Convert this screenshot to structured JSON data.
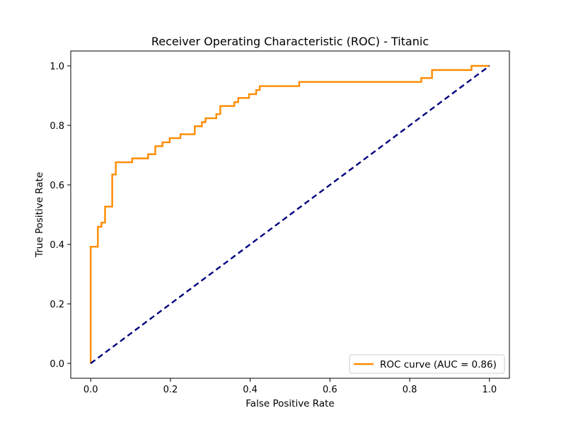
{
  "chart_data": {
    "type": "line",
    "title": "Receiver Operating Characteristic (ROC) - Titanic",
    "xlabel": "False Positive Rate",
    "ylabel": "True Positive Rate",
    "xlim": [
      -0.05,
      1.05
    ],
    "ylim": [
      -0.05,
      1.05
    ],
    "xticks": [
      0.0,
      0.2,
      0.4,
      0.6,
      0.8,
      1.0
    ],
    "xtick_labels": [
      "0.0",
      "0.2",
      "0.4",
      "0.6",
      "0.8",
      "1.0"
    ],
    "yticks": [
      0.0,
      0.2,
      0.4,
      0.6,
      0.8,
      1.0
    ],
    "ytick_labels": [
      "0.0",
      "0.2",
      "0.4",
      "0.6",
      "0.8",
      "1.0"
    ],
    "grid": false,
    "legend": {
      "position": "lower-right",
      "entries": [
        "ROC curve (AUC = 0.86)"
      ]
    },
    "series": [
      {
        "name": "ROC curve (AUC = 0.86)",
        "color": "#ff8c00",
        "style": "solid",
        "x": [
          0.0,
          0.0,
          0.018,
          0.018,
          0.027,
          0.027,
          0.036,
          0.036,
          0.054,
          0.054,
          0.063,
          0.063,
          0.104,
          0.104,
          0.144,
          0.144,
          0.162,
          0.162,
          0.18,
          0.18,
          0.198,
          0.198,
          0.225,
          0.225,
          0.261,
          0.261,
          0.279,
          0.279,
          0.288,
          0.288,
          0.315,
          0.315,
          0.325,
          0.325,
          0.36,
          0.36,
          0.37,
          0.37,
          0.397,
          0.397,
          0.415,
          0.415,
          0.424,
          0.424,
          0.523,
          0.523,
          0.829,
          0.829,
          0.856,
          0.856,
          0.955,
          0.955,
          1.0
        ],
        "y": [
          0.0,
          0.392,
          0.392,
          0.459,
          0.459,
          0.473,
          0.473,
          0.527,
          0.527,
          0.635,
          0.635,
          0.676,
          0.676,
          0.689,
          0.689,
          0.703,
          0.703,
          0.73,
          0.73,
          0.743,
          0.743,
          0.757,
          0.757,
          0.77,
          0.77,
          0.797,
          0.797,
          0.811,
          0.811,
          0.824,
          0.824,
          0.838,
          0.838,
          0.865,
          0.865,
          0.878,
          0.878,
          0.892,
          0.892,
          0.905,
          0.905,
          0.919,
          0.919,
          0.932,
          0.932,
          0.946,
          0.946,
          0.959,
          0.959,
          0.986,
          0.986,
          1.0,
          1.0
        ]
      },
      {
        "color": "#000080",
        "style": "dashed",
        "x": [
          0.0,
          1.0
        ],
        "y": [
          0.0,
          1.0
        ]
      }
    ]
  }
}
